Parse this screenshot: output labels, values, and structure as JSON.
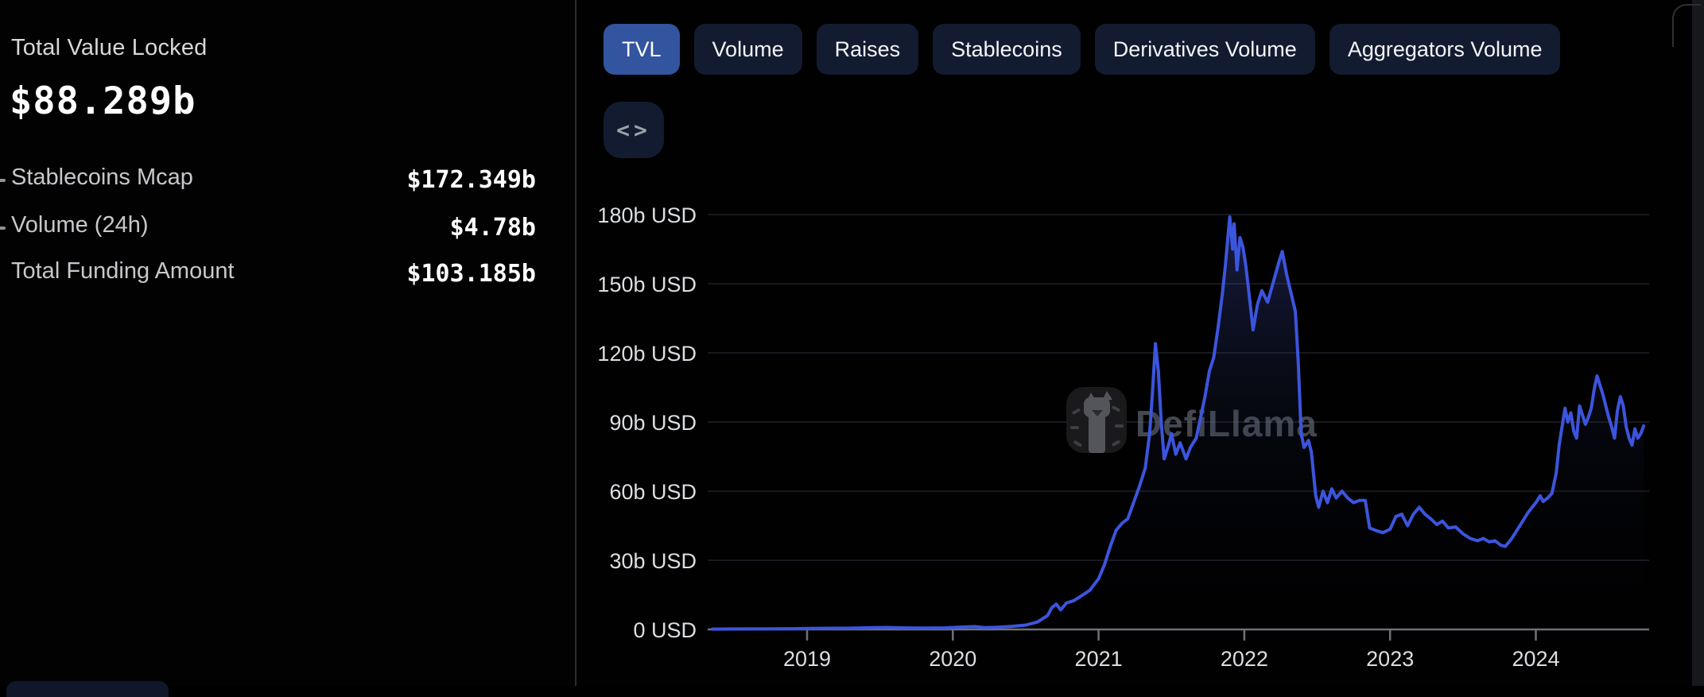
{
  "left_panel": {
    "title": "Total Value Locked",
    "value": "$88.289b",
    "metrics": [
      {
        "label": "Stablecoins Mcap",
        "value": "$172.349b"
      },
      {
        "label": "Volume (24h)",
        "value": "$4.78b"
      },
      {
        "label": "Total Funding Amount",
        "value": "$103.185b"
      }
    ]
  },
  "tabs": [
    {
      "label": "TVL",
      "active": true
    },
    {
      "label": "Volume",
      "active": false
    },
    {
      "label": "Raises",
      "active": false
    },
    {
      "label": "Stablecoins",
      "active": false
    },
    {
      "label": "Derivatives Volume",
      "active": false
    },
    {
      "label": "Aggregators Volume",
      "active": false
    }
  ],
  "embed_button": {
    "glyph": "<>",
    "icon": "code-embed-icon"
  },
  "watermark": {
    "text": "DefiLlama",
    "icon": "defillama-llama-logo"
  },
  "colors": {
    "accent_tab": "#33549f",
    "tab_inactive": "#131b31",
    "line": "#3c55dd",
    "background": "#010102",
    "axis": "#6f7176",
    "gridline": "#202127"
  },
  "chart_data": {
    "type": "area",
    "title": "DeFi Total Value Locked over time",
    "unit": "billion USD",
    "legend": "none",
    "grid": "horizontal",
    "xlim": [
      2018.35,
      2024.78
    ],
    "ylim": [
      0,
      186
    ],
    "x_ticks": [
      {
        "t": 2019,
        "label": "2019"
      },
      {
        "t": 2020,
        "label": "2020"
      },
      {
        "t": 2021,
        "label": "2021"
      },
      {
        "t": 2022,
        "label": "2022"
      },
      {
        "t": 2023,
        "label": "2023"
      },
      {
        "t": 2024,
        "label": "2024"
      }
    ],
    "y_ticks": [
      {
        "v": 0,
        "label": "0 USD"
      },
      {
        "v": 30,
        "label": "30b USD"
      },
      {
        "v": 60,
        "label": "60b USD"
      },
      {
        "v": 90,
        "label": "90b USD"
      },
      {
        "v": 120,
        "label": "120b USD"
      },
      {
        "v": 150,
        "label": "150b USD"
      },
      {
        "v": 180,
        "label": "180b USD"
      }
    ],
    "series": [
      {
        "name": "TVL",
        "color": "#3c55dd",
        "points": [
          [
            2018.35,
            0.15
          ],
          [
            2018.5,
            0.2
          ],
          [
            2018.7,
            0.27
          ],
          [
            2018.9,
            0.32
          ],
          [
            2019.0,
            0.45
          ],
          [
            2019.15,
            0.5
          ],
          [
            2019.3,
            0.55
          ],
          [
            2019.45,
            0.75
          ],
          [
            2019.55,
            0.85
          ],
          [
            2019.65,
            0.7
          ],
          [
            2019.8,
            0.62
          ],
          [
            2019.95,
            0.7
          ],
          [
            2020.05,
            1.0
          ],
          [
            2020.15,
            1.25
          ],
          [
            2020.22,
            0.75
          ],
          [
            2020.3,
            0.95
          ],
          [
            2020.4,
            1.3
          ],
          [
            2020.5,
            1.9
          ],
          [
            2020.58,
            3.2
          ],
          [
            2020.65,
            6.0
          ],
          [
            2020.68,
            9.5
          ],
          [
            2020.71,
            11.0
          ],
          [
            2020.74,
            8.5
          ],
          [
            2020.78,
            11.5
          ],
          [
            2020.83,
            12.5
          ],
          [
            2020.88,
            14.5
          ],
          [
            2020.94,
            17.0
          ],
          [
            2021.0,
            22.0
          ],
          [
            2021.04,
            28.0
          ],
          [
            2021.08,
            36.0
          ],
          [
            2021.12,
            43.0
          ],
          [
            2021.16,
            46.0
          ],
          [
            2021.2,
            48.0
          ],
          [
            2021.24,
            55.0
          ],
          [
            2021.28,
            62.0
          ],
          [
            2021.32,
            70.0
          ],
          [
            2021.35,
            85.0
          ],
          [
            2021.37,
            103.0
          ],
          [
            2021.39,
            124.0
          ],
          [
            2021.41,
            112.0
          ],
          [
            2021.43,
            90.0
          ],
          [
            2021.45,
            74.0
          ],
          [
            2021.48,
            80.0
          ],
          [
            2021.5,
            85.0
          ],
          [
            2021.53,
            76.0
          ],
          [
            2021.56,
            81.0
          ],
          [
            2021.6,
            74.0
          ],
          [
            2021.63,
            79.0
          ],
          [
            2021.67,
            83.0
          ],
          [
            2021.7,
            92.0
          ],
          [
            2021.73,
            101.0
          ],
          [
            2021.76,
            112.0
          ],
          [
            2021.79,
            118.0
          ],
          [
            2021.82,
            131.0
          ],
          [
            2021.85,
            146.0
          ],
          [
            2021.87,
            158.0
          ],
          [
            2021.89,
            172.0
          ],
          [
            2021.9,
            179.0
          ],
          [
            2021.92,
            165.0
          ],
          [
            2021.93,
            176.0
          ],
          [
            2021.95,
            156.0
          ],
          [
            2021.97,
            170.0
          ],
          [
            2021.99,
            166.0
          ],
          [
            2022.01,
            158.0
          ],
          [
            2022.03,
            147.0
          ],
          [
            2022.06,
            130.0
          ],
          [
            2022.09,
            141.0
          ],
          [
            2022.12,
            147.0
          ],
          [
            2022.16,
            142.0
          ],
          [
            2022.2,
            151.0
          ],
          [
            2022.24,
            160.0
          ],
          [
            2022.26,
            164.0
          ],
          [
            2022.29,
            154.0
          ],
          [
            2022.32,
            146.0
          ],
          [
            2022.35,
            138.0
          ],
          [
            2022.37,
            116.0
          ],
          [
            2022.39,
            85.0
          ],
          [
            2022.41,
            79.0
          ],
          [
            2022.44,
            82.0
          ],
          [
            2022.46,
            77.0
          ],
          [
            2022.49,
            58.0
          ],
          [
            2022.51,
            53.0
          ],
          [
            2022.54,
            60.0
          ],
          [
            2022.57,
            55.0
          ],
          [
            2022.6,
            61.0
          ],
          [
            2022.63,
            57.0
          ],
          [
            2022.67,
            60.0
          ],
          [
            2022.71,
            57.0
          ],
          [
            2022.75,
            55.0
          ],
          [
            2022.79,
            56.0
          ],
          [
            2022.83,
            56.0
          ],
          [
            2022.86,
            44.0
          ],
          [
            2022.9,
            43.0
          ],
          [
            2022.95,
            42.0
          ],
          [
            2023.0,
            43.5
          ],
          [
            2023.04,
            49.0
          ],
          [
            2023.08,
            50.0
          ],
          [
            2023.12,
            45.0
          ],
          [
            2023.16,
            50.0
          ],
          [
            2023.2,
            53.0
          ],
          [
            2023.24,
            50.0
          ],
          [
            2023.28,
            48.0
          ],
          [
            2023.32,
            45.5
          ],
          [
            2023.36,
            47.0
          ],
          [
            2023.4,
            44.0
          ],
          [
            2023.45,
            44.5
          ],
          [
            2023.5,
            41.5
          ],
          [
            2023.55,
            39.5
          ],
          [
            2023.6,
            38.5
          ],
          [
            2023.64,
            39.5
          ],
          [
            2023.68,
            38.0
          ],
          [
            2023.72,
            38.5
          ],
          [
            2023.76,
            36.5
          ],
          [
            2023.79,
            36.0
          ],
          [
            2023.83,
            39.0
          ],
          [
            2023.87,
            43.0
          ],
          [
            2023.91,
            47.0
          ],
          [
            2023.95,
            51.0
          ],
          [
            2024.0,
            55.0
          ],
          [
            2024.03,
            58.0
          ],
          [
            2024.05,
            55.5
          ],
          [
            2024.08,
            57.0
          ],
          [
            2024.11,
            59.0
          ],
          [
            2024.14,
            68.0
          ],
          [
            2024.16,
            80.0
          ],
          [
            2024.18,
            88.0
          ],
          [
            2024.2,
            96.0
          ],
          [
            2024.22,
            90.0
          ],
          [
            2024.24,
            94.0
          ],
          [
            2024.26,
            86.0
          ],
          [
            2024.28,
            83.0
          ],
          [
            2024.3,
            97.0
          ],
          [
            2024.32,
            93.0
          ],
          [
            2024.34,
            89.0
          ],
          [
            2024.36,
            92.0
          ],
          [
            2024.38,
            96.0
          ],
          [
            2024.4,
            104.0
          ],
          [
            2024.42,
            110.0
          ],
          [
            2024.44,
            106.0
          ],
          [
            2024.46,
            102.0
          ],
          [
            2024.48,
            97.0
          ],
          [
            2024.5,
            92.0
          ],
          [
            2024.52,
            88.0
          ],
          [
            2024.54,
            83.0
          ],
          [
            2024.56,
            95.0
          ],
          [
            2024.58,
            101.0
          ],
          [
            2024.6,
            97.0
          ],
          [
            2024.62,
            88.0
          ],
          [
            2024.64,
            83.0
          ],
          [
            2024.66,
            80.0
          ],
          [
            2024.68,
            87.0
          ],
          [
            2024.7,
            83.0
          ],
          [
            2024.72,
            85.0
          ],
          [
            2024.74,
            88.3
          ]
        ]
      }
    ]
  }
}
